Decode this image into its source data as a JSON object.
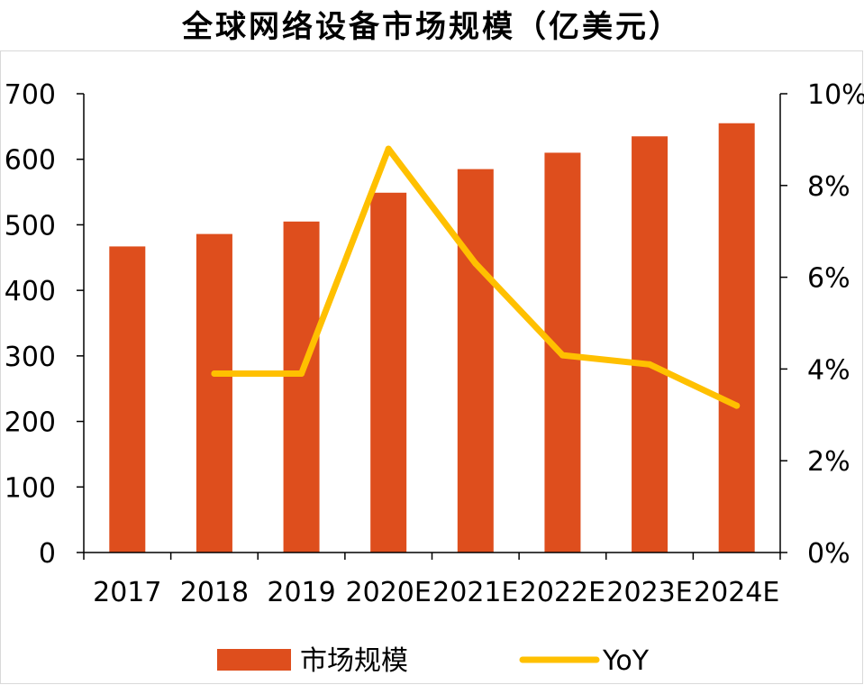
{
  "title": "全球网络设备市场规模（亿美元）",
  "colors": {
    "bar": "#DE4E1D",
    "line": "#FFC000",
    "axis": "#000000",
    "frame": "#d9d9d9"
  },
  "chart_data": {
    "type": "bar",
    "title": "全球网络设备市场规模（亿美元）",
    "categories": [
      "2017",
      "2018",
      "2019",
      "2020E",
      "2021E",
      "2022E",
      "2023E",
      "2024E"
    ],
    "series": [
      {
        "name": "市场规模",
        "type": "bar",
        "axis": "left",
        "values": [
          467,
          486,
          505,
          549,
          585,
          610,
          635,
          655
        ]
      },
      {
        "name": "YoY",
        "type": "line",
        "axis": "right",
        "values": [
          null,
          3.9,
          3.9,
          8.8,
          6.3,
          4.3,
          4.1,
          3.2
        ]
      }
    ],
    "y_left": {
      "min": 0,
      "max": 700,
      "ticks": [
        "0",
        "100",
        "200",
        "300",
        "400",
        "500",
        "600",
        "700"
      ]
    },
    "y_right": {
      "min": 0,
      "max": 10,
      "ticks": [
        "0%",
        "2%",
        "4%",
        "6%",
        "8%",
        "10%"
      ]
    },
    "grid": false,
    "legend": {
      "position": "bottom",
      "entries": [
        "市场规模",
        "YoY"
      ]
    }
  }
}
